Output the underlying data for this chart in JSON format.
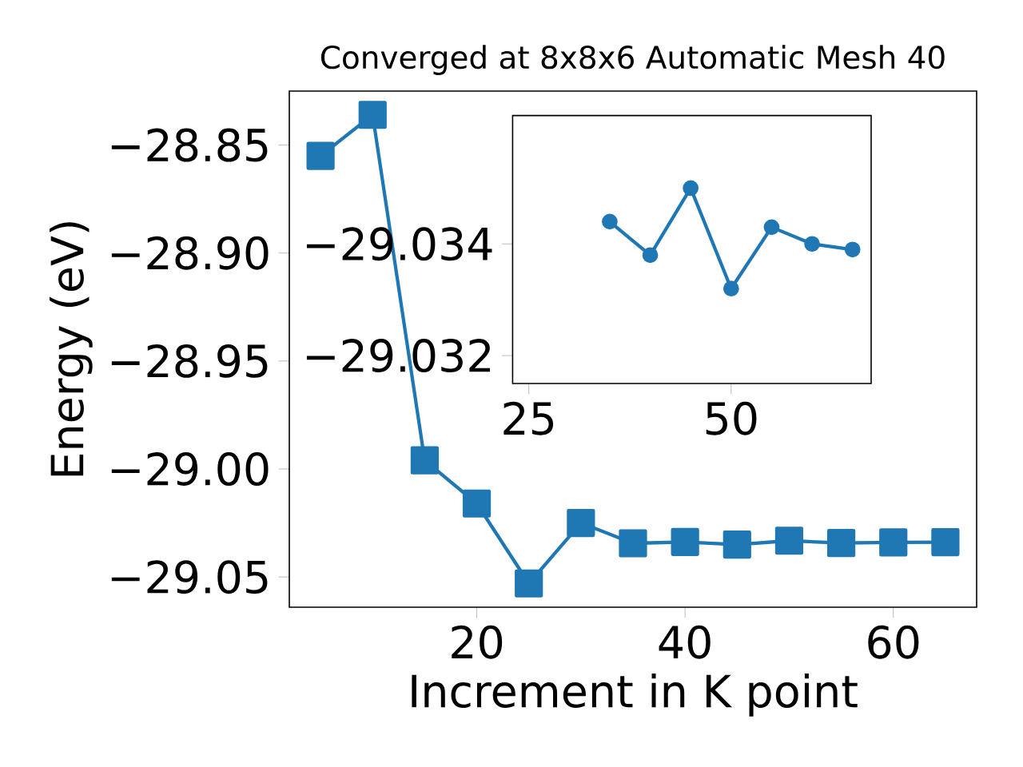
{
  "chart_data": [
    {
      "type": "line",
      "title": "Converged at 8x8x6 Automatic Mesh 40",
      "xlabel": "Increment in K point",
      "ylabel": "Energy (eV)",
      "x": [
        5,
        10,
        15,
        20,
        25,
        30,
        35,
        40,
        45,
        50,
        55,
        60,
        65
      ],
      "series": [
        {
          "color": "#1f77b4",
          "values": [
            -28.855,
            -28.836,
            -28.996,
            -29.016,
            -29.053,
            -29.025,
            -29.0344,
            -29.0338,
            -29.035,
            -29.0332,
            -29.0343,
            -29.034,
            -29.0339
          ]
        }
      ],
      "marker": "square",
      "line_style": "solid",
      "grid": false,
      "xlim": [
        2,
        68
      ],
      "ylim": [
        -29.064,
        -28.825
      ],
      "xticks": [
        20,
        40,
        60
      ],
      "yticks": [
        {
          "value": -29.05,
          "label": "−29.05"
        },
        {
          "value": -29.0,
          "label": "−29.00"
        },
        {
          "value": -28.95,
          "label": "−28.95"
        },
        {
          "value": -28.9,
          "label": "−28.90"
        },
        {
          "value": -28.85,
          "label": "−28.85"
        }
      ]
    },
    {
      "type": "line",
      "x": [
        35,
        40,
        45,
        50,
        55,
        60,
        65
      ],
      "series": [
        {
          "color": "#1f77b4",
          "values": [
            -29.0344,
            -29.0338,
            -29.035,
            -29.0332,
            -29.0343,
            -29.034,
            -29.0339
          ]
        }
      ],
      "marker": "circle",
      "line_style": "solid",
      "grid": false,
      "xlim": [
        23,
        67.3
      ],
      "ylim": [
        -29.0315,
        -29.0363
      ],
      "xticks": [
        25,
        50
      ],
      "yticks": [
        {
          "value": -29.034,
          "label": "−29.034"
        },
        {
          "value": -29.032,
          "label": "−29.032"
        }
      ]
    }
  ]
}
